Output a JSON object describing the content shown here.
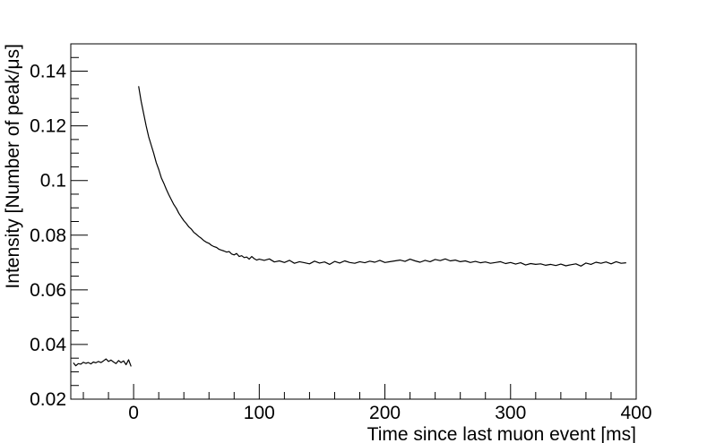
{
  "chart_data": {
    "type": "line",
    "title": "",
    "xlabel": "Time since last muon event [ms]",
    "ylabel": "Intensity [Number of peak/μs]",
    "xlim": [
      -50,
      400
    ],
    "ylim": [
      0.02,
      0.15
    ],
    "xticks": [
      0,
      100,
      200,
      300,
      400
    ],
    "xtick_labels": [
      "0",
      "100",
      "200",
      "300",
      "400"
    ],
    "yticks": [
      0.02,
      0.04,
      0.06,
      0.08,
      0.1,
      0.12,
      0.14
    ],
    "ytick_labels": [
      "0.02",
      "0.04",
      "0.06",
      "0.08",
      "0.1",
      "0.12",
      "0.14"
    ],
    "grid": false,
    "series": [
      {
        "color": "#000000",
        "x": [
          -48,
          -46,
          -44,
          -42,
          -40,
          -38,
          -36,
          -34,
          -32,
          -30,
          -28,
          -26,
          -24,
          -22,
          -20,
          -18,
          -16,
          -14,
          -12,
          -10,
          -8,
          -6,
          -4,
          -2
        ],
        "values": [
          0.0333,
          0.0322,
          0.033,
          0.0328,
          0.0335,
          0.0331,
          0.0334,
          0.0329,
          0.0336,
          0.0333,
          0.0338,
          0.0334,
          0.034,
          0.0347,
          0.0338,
          0.0343,
          0.0336,
          0.033,
          0.0341,
          0.0334,
          0.034,
          0.0326,
          0.0344,
          0.032
        ]
      },
      {
        "color": "#000000",
        "x": [
          4,
          6,
          8,
          10,
          12,
          14,
          16,
          18,
          20,
          22,
          24,
          26,
          28,
          30,
          32,
          34,
          36,
          38,
          40,
          42,
          44,
          46,
          48,
          50,
          52,
          54,
          56,
          58,
          60,
          62,
          64,
          66,
          68,
          70,
          72,
          74,
          76,
          78,
          80,
          82,
          84,
          86,
          88,
          90,
          92,
          94,
          96,
          98,
          100,
          104,
          108,
          112,
          116,
          120,
          124,
          128,
          132,
          136,
          140,
          144,
          148,
          152,
          156,
          160,
          164,
          168,
          172,
          176,
          180,
          184,
          188,
          192,
          196,
          200,
          204,
          208,
          212,
          216,
          220,
          224,
          228,
          232,
          236,
          240,
          244,
          248,
          252,
          256,
          260,
          264,
          268,
          272,
          276,
          280,
          284,
          288,
          292,
          296,
          300,
          304,
          308,
          312,
          316,
          320,
          324,
          328,
          332,
          336,
          340,
          344,
          348,
          352,
          356,
          360,
          364,
          368,
          372,
          376,
          380,
          384,
          388,
          392
        ],
        "values": [
          0.1345,
          0.129,
          0.1245,
          0.12,
          0.116,
          0.113,
          0.11,
          0.1065,
          0.104,
          0.101,
          0.099,
          0.0968,
          0.0948,
          0.093,
          0.0912,
          0.0898,
          0.088,
          0.0866,
          0.0853,
          0.0842,
          0.083,
          0.0822,
          0.081,
          0.0803,
          0.0795,
          0.0788,
          0.078,
          0.0774,
          0.077,
          0.0763,
          0.0758,
          0.0755,
          0.0748,
          0.0745,
          0.0742,
          0.0738,
          0.074,
          0.0731,
          0.0728,
          0.0733,
          0.0722,
          0.0725,
          0.0718,
          0.072,
          0.0712,
          0.0722,
          0.0714,
          0.0709,
          0.0712,
          0.0708,
          0.0713,
          0.0702,
          0.0706,
          0.07,
          0.0708,
          0.0697,
          0.0703,
          0.0699,
          0.0695,
          0.0705,
          0.0698,
          0.0702,
          0.0693,
          0.0704,
          0.0698,
          0.0706,
          0.07,
          0.0697,
          0.0703,
          0.0699,
          0.0705,
          0.0701,
          0.0708,
          0.07,
          0.0703,
          0.0706,
          0.0709,
          0.0704,
          0.0712,
          0.0706,
          0.0701,
          0.0708,
          0.0703,
          0.0711,
          0.0707,
          0.0713,
          0.0706,
          0.0709,
          0.0703,
          0.0706,
          0.07,
          0.0704,
          0.0699,
          0.0702,
          0.0697,
          0.07,
          0.0703,
          0.0696,
          0.07,
          0.0694,
          0.0699,
          0.0691,
          0.0696,
          0.0693,
          0.0695,
          0.069,
          0.0693,
          0.0689,
          0.0694,
          0.0688,
          0.0692,
          0.0695,
          0.0687,
          0.0698,
          0.0693,
          0.0701,
          0.0697,
          0.0702,
          0.0695,
          0.0703,
          0.0697,
          0.0699
        ]
      }
    ]
  }
}
